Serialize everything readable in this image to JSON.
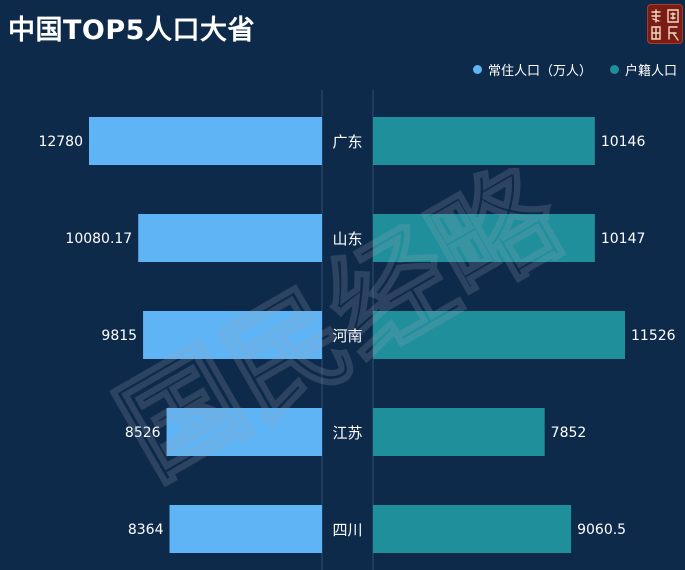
{
  "title": "中国TOP5人口大省",
  "seal": {
    "text": "经 国 略 民"
  },
  "legend": [
    {
      "label": "常住人口（万人）",
      "color": "#5eb4f4"
    },
    {
      "label": "户籍人口",
      "color": "#1f8f9c"
    }
  ],
  "watermark": {
    "text": "国民经略"
  },
  "chart_data": {
    "type": "bar",
    "orientation": "horizontal-butterfly",
    "categories": [
      "广东",
      "山东",
      "河南",
      "江苏",
      "四川"
    ],
    "series": [
      {
        "name": "常住人口（万人）",
        "values": [
          "12780",
          "10080.17",
          "9815",
          "8526",
          "8364"
        ],
        "color": "#5eb4f4",
        "side": "left"
      },
      {
        "name": "户籍人口",
        "values": [
          "10146",
          "10147",
          "11526",
          "7852",
          "9060.5"
        ],
        "color": "#1f8f9c",
        "side": "right"
      }
    ]
  }
}
